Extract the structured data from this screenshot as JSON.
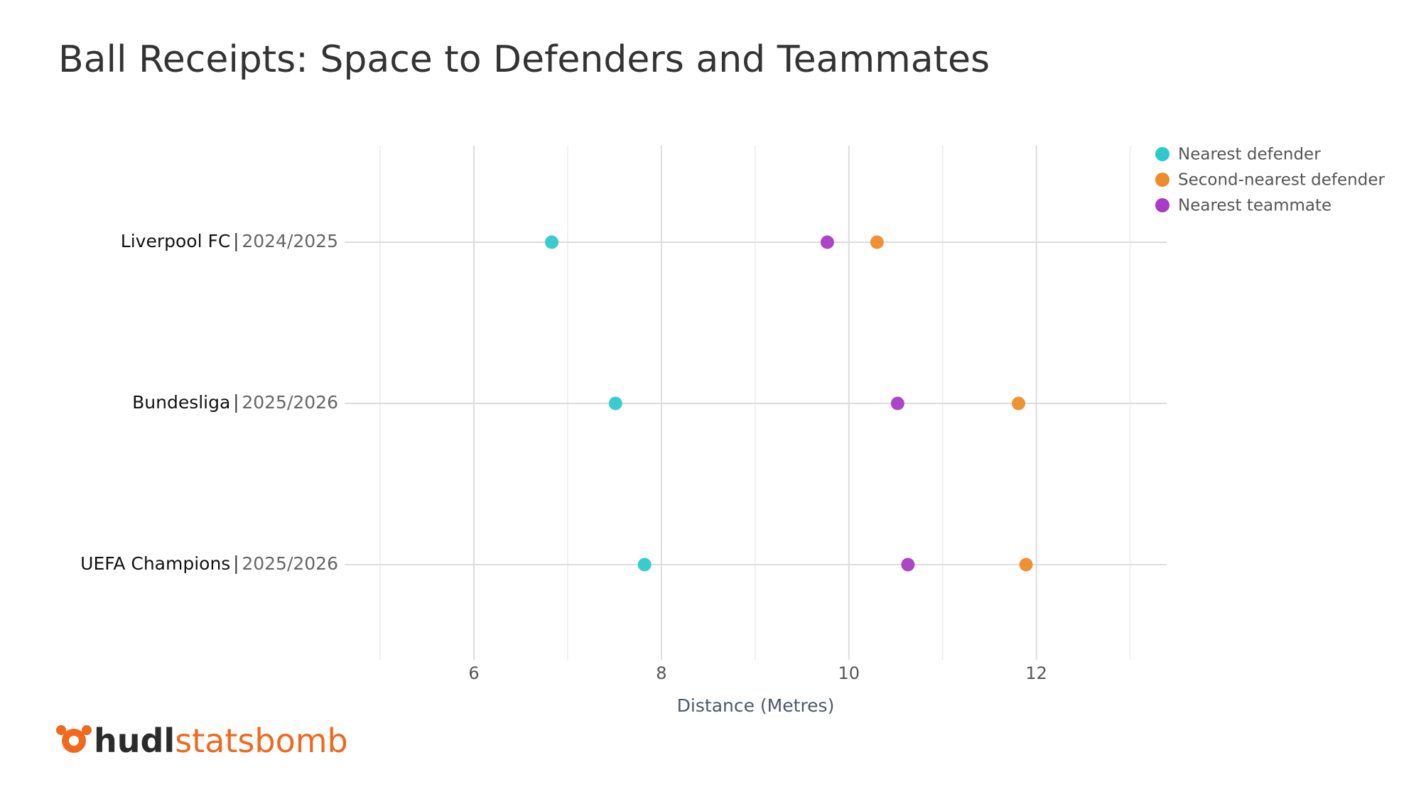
{
  "chart_data": {
    "type": "dot",
    "title": "Ball Receipts: Space to Defenders and Teammates",
    "categories": [
      {
        "name": "Liverpool FC",
        "season": "2024/2025"
      },
      {
        "name": "Bundesliga",
        "season": "2025/2026"
      },
      {
        "name": "UEFA Champions",
        "season": "2025/2026"
      }
    ],
    "series": [
      {
        "name": "Nearest defender",
        "color": "#2ec9cc",
        "values": [
          6.83,
          7.51,
          7.82
        ]
      },
      {
        "name": "Second-nearest defender",
        "color": "#ee8c2a",
        "values": [
          10.3,
          11.81,
          11.89
        ]
      },
      {
        "name": "Nearest teammate",
        "color": "#a93bc4",
        "values": [
          9.77,
          10.52,
          10.63
        ]
      }
    ],
    "xlabel": "Distance (Metres)",
    "xlim": [
      4.62,
      13.39
    ],
    "xticks": [
      6,
      8,
      10,
      12
    ],
    "xticks_minor": [
      5,
      7,
      9,
      11,
      13
    ],
    "grid": true,
    "legend": "top-right",
    "logo": {
      "brand": "hudl",
      "product": "statsbomb"
    }
  }
}
